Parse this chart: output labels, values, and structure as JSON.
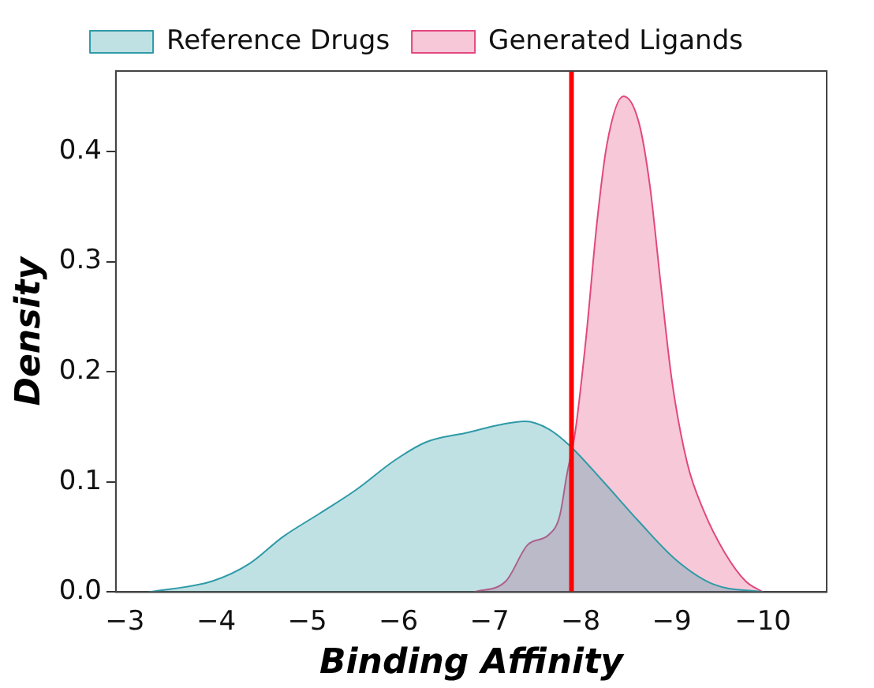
{
  "chart_data": {
    "type": "area",
    "xlabel": "Binding Affinity",
    "ylabel": "Density",
    "xlim": [
      -2.9,
      -10.7
    ],
    "ylim": [
      0,
      0.473
    ],
    "xticks": [
      {
        "value": -3,
        "label": "−3"
      },
      {
        "value": -4,
        "label": "−4"
      },
      {
        "value": -5,
        "label": "−5"
      },
      {
        "value": -6,
        "label": "−6"
      },
      {
        "value": -7,
        "label": "−7"
      },
      {
        "value": -8,
        "label": "−8"
      },
      {
        "value": -9,
        "label": "−9"
      },
      {
        "value": -10,
        "label": "−10"
      }
    ],
    "yticks": [
      {
        "value": 0,
        "label": "0.0"
      },
      {
        "value": 0.1,
        "label": "0.1"
      },
      {
        "value": 0.2,
        "label": "0.2"
      },
      {
        "value": 0.3,
        "label": "0.3"
      },
      {
        "value": 0.4,
        "label": "0.4"
      }
    ],
    "series": [
      {
        "name": "Reference Drugs",
        "color": "#2f9aa7",
        "x": [
          -3.26,
          -3.96,
          -4.37,
          -4.73,
          -5.13,
          -5.54,
          -5.95,
          -6.3,
          -6.77,
          -7.12,
          -7.39,
          -7.65,
          -7.88,
          -8.23,
          -8.64,
          -9.05,
          -9.46,
          -10
        ],
        "values": [
          0,
          0.01,
          0.026,
          0.05,
          0.071,
          0.093,
          0.119,
          0.136,
          0.145,
          0.152,
          0.155,
          0.148,
          0.133,
          0.102,
          0.064,
          0.029,
          0.007,
          0
        ]
      },
      {
        "name": "Generated Ligands",
        "color": "#e2487f",
        "x": [
          -6.83,
          -7.18,
          -7.42,
          -7.65,
          -7.77,
          -7.85,
          -7.94,
          -8.06,
          -8.18,
          -8.29,
          -8.47,
          -8.64,
          -8.76,
          -8.88,
          -9.0,
          -9.17,
          -9.35,
          -9.58,
          -9.81,
          -10
        ],
        "values": [
          0,
          0.01,
          0.043,
          0.052,
          0.069,
          0.107,
          0.145,
          0.231,
          0.336,
          0.407,
          0.45,
          0.426,
          0.369,
          0.279,
          0.193,
          0.117,
          0.074,
          0.036,
          0.01,
          0
        ]
      }
    ],
    "ref_lines": [
      {
        "axis": "x",
        "value": -7.9,
        "color": "#ff0000"
      }
    ],
    "legend": "top",
    "grid": false
  }
}
